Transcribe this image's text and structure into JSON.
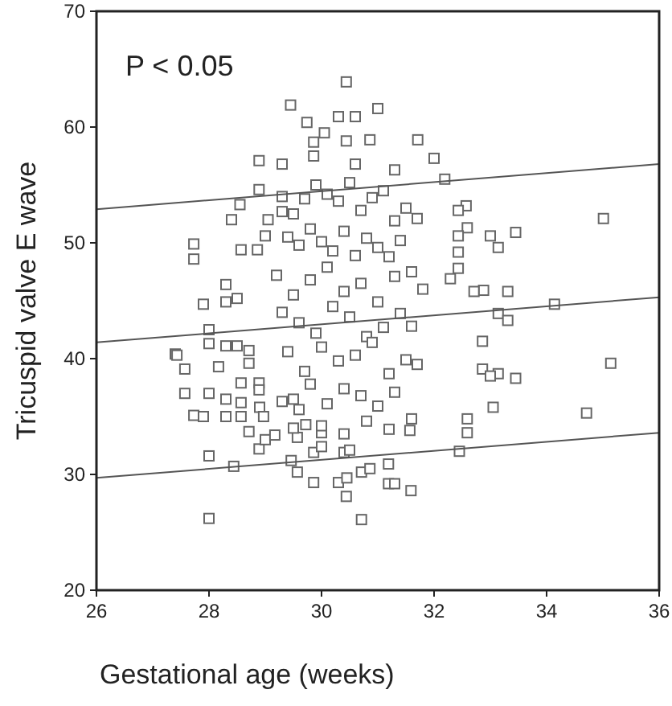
{
  "chart_data": {
    "type": "scatter",
    "xlabel": "Gestational age (weeks)",
    "ylabel": "Tricuspid valve E wave",
    "annotations": [
      "P < 0.05"
    ],
    "xlim": [
      26,
      36
    ],
    "ylim": [
      20,
      70
    ],
    "xticks": [
      26,
      28,
      30,
      32,
      34,
      36
    ],
    "yticks": [
      20,
      30,
      40,
      50,
      60,
      70
    ],
    "grid": false,
    "series": [
      {
        "marker": "square",
        "color": "#666666",
        "x": [
          30.44,
          29.45,
          29.74,
          30.3,
          30.6,
          31.0,
          29.86,
          30.05,
          30.44,
          30.86,
          28.89,
          29.3,
          29.86,
          30.6,
          28.89,
          28.55,
          27.73,
          27.73,
          28.3,
          27.9,
          28.3,
          28.5,
          27.4,
          28.4,
          29.05,
          29.3,
          29.0,
          28.57,
          28.86,
          28.0,
          30.71,
          28.0,
          28.44,
          29.46,
          29.86,
          29.57,
          30.44,
          30.3,
          30.71,
          30.86,
          27.43,
          27.57,
          28.17,
          27.57,
          28.0,
          28.3,
          27.73,
          27.9,
          28.3,
          28.57,
          28.57,
          28.71,
          28.89,
          29.0,
          29.17,
          28.9,
          28.97,
          28.57,
          28.89,
          28.89,
          28.0,
          28.0,
          28.3,
          28.5,
          28.71,
          28.71,
          29.57,
          29.72,
          29.86,
          30.0,
          30.4,
          30.5,
          30.45,
          29.3,
          29.5,
          30.0,
          31.71,
          32.0,
          31.3,
          32.19,
          35.01,
          33.45,
          33.0,
          33.14,
          32.57,
          32.43,
          32.59,
          32.43,
          33.31,
          32.88,
          33.14,
          33.31,
          34.14,
          35.14,
          33.45,
          33.14,
          32.86,
          33.0,
          33.05,
          32.59,
          32.59,
          32.45,
          34.71,
          31.19,
          31.19,
          31.3,
          31.59,
          31.57,
          32.86,
          32.43,
          32.43,
          32.29,
          32.71,
          29.3,
          29.5,
          29.7,
          29.9,
          30.1,
          30.3,
          30.5,
          30.7,
          30.9,
          31.1,
          31.3,
          31.5,
          31.7,
          29.4,
          29.6,
          29.8,
          30.0,
          30.2,
          30.4,
          30.6,
          30.8,
          31.0,
          31.2,
          31.4,
          31.6,
          31.8,
          29.2,
          29.5,
          29.8,
          30.1,
          30.4,
          30.7,
          31.0,
          31.3,
          31.6,
          29.3,
          29.6,
          29.9,
          30.2,
          30.5,
          30.8,
          31.1,
          31.4,
          31.7,
          29.4,
          29.7,
          30.0,
          30.3,
          30.6,
          30.9,
          31.2,
          31.5,
          29.5,
          29.8,
          30.1,
          30.4,
          30.7,
          31.0,
          31.3,
          29.6,
          30.0,
          30.4,
          30.8,
          31.2,
          31.6
        ],
        "values": [
          63.9,
          61.9,
          60.4,
          60.9,
          60.9,
          61.6,
          58.7,
          59.5,
          58.8,
          58.9,
          57.1,
          56.8,
          57.5,
          56.8,
          54.6,
          53.3,
          49.9,
          48.6,
          46.4,
          44.7,
          44.9,
          45.2,
          40.4,
          52,
          52,
          52.7,
          50.6,
          49.4,
          49.4,
          26.2,
          26.1,
          31.6,
          30.7,
          31.2,
          29.3,
          30.2,
          28.1,
          29.3,
          30.2,
          30.5,
          40.3,
          39.1,
          39.3,
          37.0,
          37.0,
          36.5,
          35.1,
          35.0,
          35.0,
          36.2,
          35.0,
          33.7,
          32.2,
          33.0,
          33.4,
          35.8,
          35.0,
          37.9,
          37.9,
          37.3,
          42.5,
          41.3,
          41.1,
          41.1,
          40.7,
          39.6,
          33.2,
          34.3,
          31.9,
          32.4,
          31.9,
          32.1,
          29.7,
          36.3,
          34.0,
          33.6,
          58.9,
          57.3,
          56.3,
          55.5,
          52.1,
          50.9,
          50.6,
          49.6,
          53.2,
          52.8,
          51.3,
          50.6,
          45.8,
          45.9,
          43.9,
          43.3,
          44.7,
          39.6,
          38.3,
          38.7,
          39.1,
          38.5,
          35.8,
          34.8,
          33.6,
          32.0,
          35.3,
          30.9,
          29.2,
          29.2,
          28.6,
          33.8,
          41.5,
          49.2,
          47.8,
          46.9,
          45.8,
          54.0,
          52.5,
          53.8,
          55.0,
          54.2,
          53.6,
          55.2,
          52.8,
          53.9,
          54.5,
          51.9,
          53.0,
          52.1,
          50.5,
          49.8,
          51.2,
          50.1,
          49.3,
          51.0,
          48.9,
          50.4,
          49.6,
          48.8,
          50.2,
          47.5,
          46.0,
          47.2,
          45.5,
          46.8,
          47.9,
          45.8,
          46.5,
          44.9,
          47.1,
          42.8,
          44.0,
          43.1,
          42.2,
          44.5,
          43.6,
          41.9,
          42.7,
          43.9,
          39.5,
          40.6,
          38.9,
          41.0,
          39.8,
          40.3,
          41.4,
          38.7,
          39.9,
          36.5,
          37.8,
          36.1,
          37.4,
          36.8,
          35.9,
          37.1,
          35.6,
          34.2,
          33.5,
          34.6,
          33.9,
          34.8
        ]
      },
      {
        "type": "line",
        "marker": "none",
        "color": "#555555",
        "x": [
          26,
          36
        ],
        "values": [
          52.9,
          56.8
        ]
      },
      {
        "type": "line",
        "marker": "none",
        "color": "#555555",
        "x": [
          26,
          36
        ],
        "values": [
          41.4,
          45.3
        ]
      },
      {
        "type": "line",
        "marker": "none",
        "color": "#555555",
        "x": [
          26,
          36
        ],
        "values": [
          29.7,
          33.6
        ]
      }
    ]
  }
}
